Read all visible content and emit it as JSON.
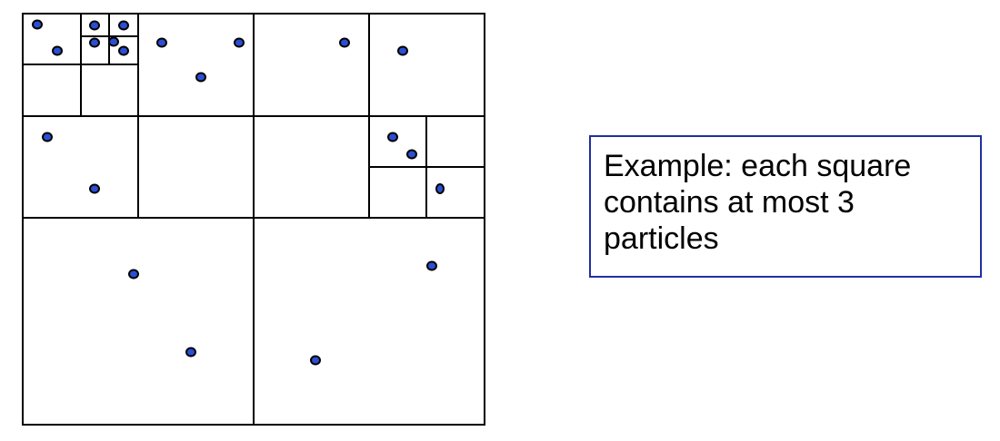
{
  "callout": {
    "lines": [
      "Example: each square",
      "contains at most 3",
      "particles"
    ]
  },
  "colors": {
    "particle_fill": "#2b4fd4",
    "particle_stroke": "#000000",
    "line": "#000000",
    "callout_border": "#2030a0"
  },
  "quadtree": {
    "max_particles_per_square": 3,
    "nodes": {
      "kind": "split",
      "children": [
        {
          "kind": "split",
          "children": [
            {
              "kind": "split",
              "children": [
                {
                  "kind": "split",
                  "children": [
                    {
                      "kind": "leaf",
                      "count": 2
                    },
                    {
                      "kind": "split",
                      "children": [
                        {
                          "kind": "leaf",
                          "count": 1
                        },
                        {
                          "kind": "leaf",
                          "count": 1
                        },
                        {
                          "kind": "leaf",
                          "count": 1
                        },
                        {
                          "kind": "leaf",
                          "count": 2
                        }
                      ]
                    },
                    {
                      "kind": "leaf",
                      "count": 0
                    },
                    {
                      "kind": "leaf",
                      "count": 0
                    }
                  ]
                },
                {
                  "kind": "leaf",
                  "count": 3
                },
                {
                  "kind": "leaf",
                  "count": 2
                },
                {
                  "kind": "leaf",
                  "count": 0
                }
              ]
            },
            {
              "kind": "leaf",
              "count": 1
            },
            {
              "kind": "leaf",
              "count": 0
            },
            {
              "kind": "split",
              "children": [
                {
                  "kind": "leaf",
                  "count": 1
                },
                {
                  "kind": "split",
                  "children": [
                    {
                      "kind": "leaf",
                      "count": 2
                    },
                    {
                      "kind": "leaf",
                      "count": 0
                    },
                    {
                      "kind": "leaf",
                      "count": 0
                    },
                    {
                      "kind": "leaf",
                      "count": 1
                    }
                  ]
                },
                {
                  "kind": "leaf",
                  "count": 0
                },
                {
                  "kind": "leaf",
                  "count": 0
                }
              ]
            }
          ]
        },
        {
          "kind": "leaf",
          "count": 2
        },
        {
          "kind": "leaf",
          "count": 2
        }
      ]
    }
  }
}
